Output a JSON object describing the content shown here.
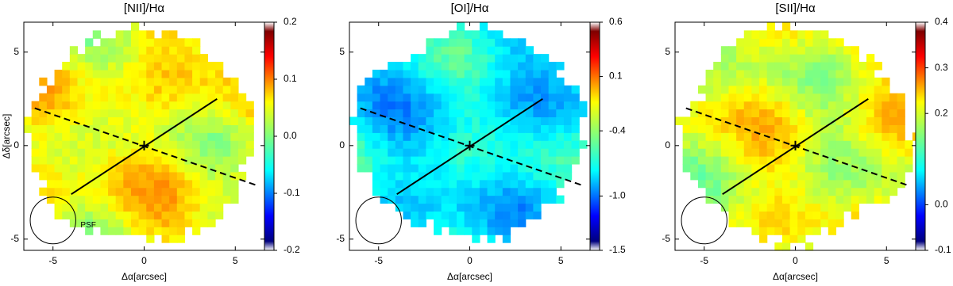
{
  "chart_data": [
    {
      "type": "heatmap",
      "title": "[NII]/Hα",
      "x_label": "Δα[arcsec]",
      "y_label": "Δδ[arcsec]",
      "xlim": [
        -6.6,
        6.6
      ],
      "ylim": [
        -5.6,
        6.6
      ],
      "xticks": [
        -5,
        0,
        5
      ],
      "yticks": [
        -5,
        0,
        5
      ],
      "colorbar_lim": [
        -0.2,
        0.2
      ],
      "colorbar_ticks": [
        -0.2,
        -0.1,
        {
          "value": 0,
          "label": "0.0"
        },
        0.1,
        0.2
      ],
      "lines": [
        {
          "style": "solid",
          "x": [
            -4,
            4
          ],
          "y": [
            -2.6,
            2.5
          ]
        },
        {
          "style": "dashed",
          "x": [
            -6,
            6.1
          ],
          "y": [
            2,
            -2.1
          ]
        }
      ],
      "psf": {
        "x": -5,
        "y": -4,
        "r": 1.25,
        "label": "PSF"
      }
    },
    {
      "type": "heatmap",
      "title": "[OI]/Hα",
      "x_label": "Δα[arcsec]",
      "xlim": [
        -6.6,
        6.6
      ],
      "ylim": [
        -5.6,
        6.6
      ],
      "xticks": [
        -5,
        0,
        5
      ],
      "yticks": [
        -5,
        0,
        5
      ],
      "colorbar_lim": [
        -1.5,
        0.6
      ],
      "colorbar_ticks": [
        -1.5,
        {
          "value": -1,
          "label": "-1.0"
        },
        -0.4,
        0.1,
        0.6
      ],
      "lines": [
        {
          "style": "solid",
          "x": [
            -4,
            4
          ],
          "y": [
            -2.6,
            2.5
          ]
        },
        {
          "style": "dashed",
          "x": [
            -6,
            6.1
          ],
          "y": [
            2,
            -2.1
          ]
        }
      ],
      "psf": {
        "x": -5,
        "y": -4,
        "r": 1.25
      }
    },
    {
      "type": "heatmap",
      "title": "[SII]/Hα",
      "x_label": "Δα[arcsec]",
      "xlim": [
        -6.6,
        6.6
      ],
      "ylim": [
        -5.6,
        6.6
      ],
      "xticks": [
        -5,
        0,
        5
      ],
      "yticks": [
        -5,
        0,
        5
      ],
      "colorbar_lim": [
        -0.1,
        0.4
      ],
      "colorbar_ticks": [
        -0.1,
        {
          "value": 0,
          "label": "0.0"
        },
        0.2,
        0.3,
        0.4
      ],
      "lines": [
        {
          "style": "solid",
          "x": [
            -4,
            4
          ],
          "y": [
            -2.6,
            2.5
          ]
        },
        {
          "style": "dashed",
          "x": [
            -6,
            6.1
          ],
          "y": [
            2,
            -2.1
          ]
        }
      ],
      "psf": {
        "x": -5,
        "y": -4,
        "r": 1.25
      }
    }
  ]
}
